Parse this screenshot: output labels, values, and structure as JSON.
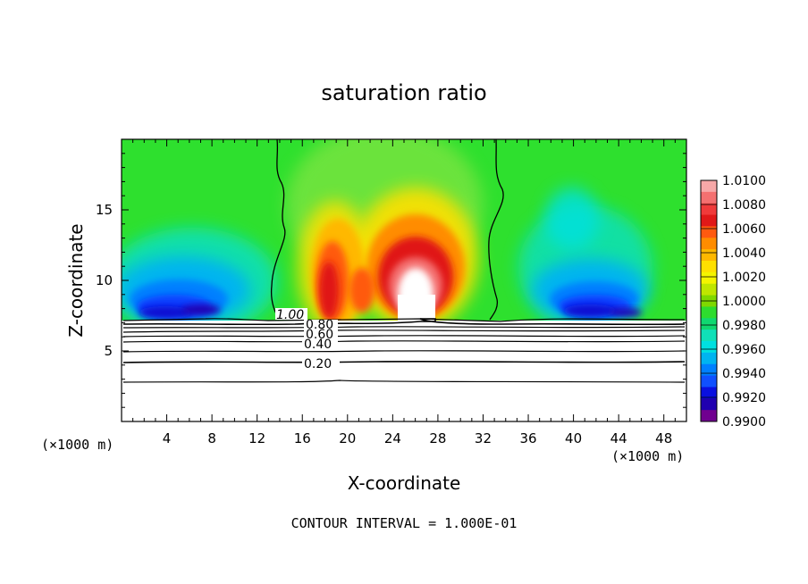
{
  "chart_data": {
    "type": "heatmap",
    "title": "saturation ratio",
    "xlabel": "X-coordinate",
    "ylabel": "Z-coordinate",
    "x_unit_label": "(×1000 m)",
    "y_unit_label": "(×1000 m)",
    "footer": "CONTOUR INTERVAL = 1.000E-01",
    "xlim": [
      0,
      50
    ],
    "ylim": [
      0,
      20
    ],
    "x_ticks": [
      4,
      8,
      12,
      16,
      20,
      24,
      28,
      32,
      36,
      40,
      44,
      48
    ],
    "y_ticks": [
      5,
      10,
      15
    ],
    "colorbar": {
      "min": 0.99,
      "max": 1.01,
      "labels": [
        "1.0100",
        "1.0080",
        "1.0060",
        "1.0040",
        "1.0020",
        "1.0000",
        "0.9980",
        "0.9960",
        "0.9940",
        "0.9920",
        "0.9900"
      ],
      "colors": [
        "#f7a8a8",
        "#f47070",
        "#f03a3a",
        "#e01818",
        "#ff5a10",
        "#ff8c00",
        "#ffb800",
        "#ffe000",
        "#f4f400",
        "#bfe600",
        "#7fd800",
        "#2edc2e",
        "#10d870",
        "#10e0b8",
        "#00e0e0",
        "#00b4f0",
        "#0080ff",
        "#1050ff",
        "#0a10e0",
        "#2000b0",
        "#700090"
      ]
    },
    "contour_labels": [
      "1.00",
      "0.80",
      "0.60",
      "0.40",
      "0.20"
    ],
    "colors": {
      "background_field": "#2ee02e",
      "lower_region": "#ffffff"
    }
  }
}
